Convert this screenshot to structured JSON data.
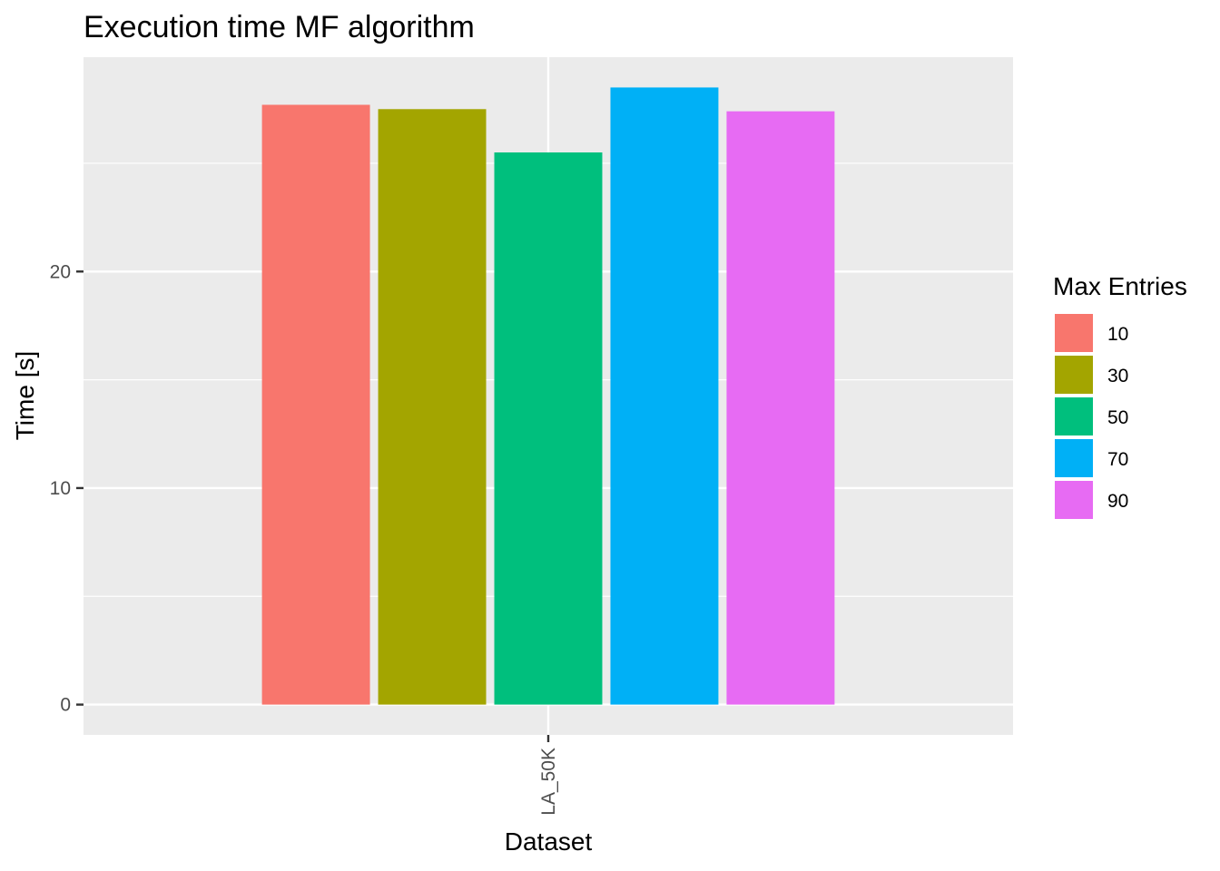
{
  "chart_data": {
    "type": "bar",
    "title": "Execution time MF algorithm",
    "xlabel": "Dataset",
    "ylabel": "Time [s]",
    "categories": [
      "LA_50K"
    ],
    "series": [
      {
        "name": "10",
        "values": [
          27.7
        ],
        "color": "#F8766D"
      },
      {
        "name": "30",
        "values": [
          27.5
        ],
        "color": "#A3A500"
      },
      {
        "name": "50",
        "values": [
          25.5
        ],
        "color": "#00BF7D"
      },
      {
        "name": "70",
        "values": [
          28.5
        ],
        "color": "#00B0F6"
      },
      {
        "name": "90",
        "values": [
          27.4
        ],
        "color": "#E76BF3"
      }
    ],
    "yticks": [
      0,
      10,
      20
    ],
    "ylim": [
      -1.4,
      29.9
    ],
    "legend": {
      "title": "Max Entries",
      "position": "right"
    },
    "grid": true,
    "panel_background": "#EBEBEB",
    "gridline_color": "#FFFFFF"
  }
}
